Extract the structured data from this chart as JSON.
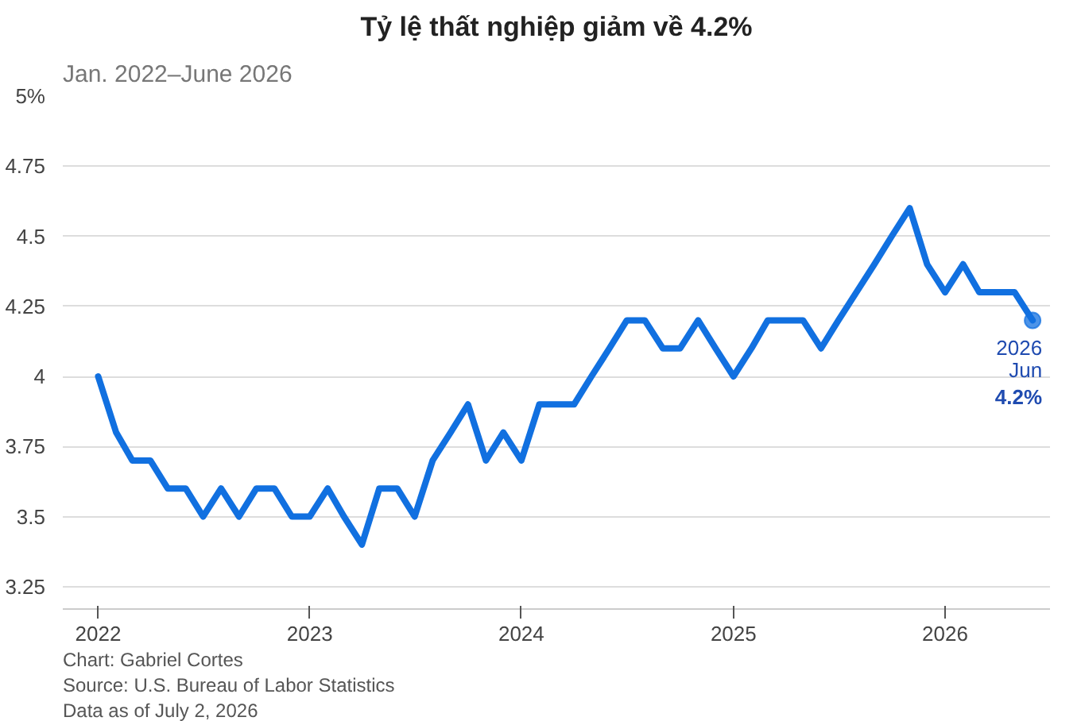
{
  "chart_data": {
    "type": "line",
    "title": "Tỷ lệ thất nghiệp giảm về 4.2%",
    "subtitle": "Jan. 2022–June 2026",
    "x": [
      "2022-01",
      "2022-02",
      "2022-03",
      "2022-04",
      "2022-05",
      "2022-06",
      "2022-07",
      "2022-08",
      "2022-09",
      "2022-10",
      "2022-11",
      "2022-12",
      "2023-01",
      "2023-02",
      "2023-03",
      "2023-04",
      "2023-05",
      "2023-06",
      "2023-07",
      "2023-08",
      "2023-09",
      "2023-10",
      "2023-11",
      "2023-12",
      "2024-01",
      "2024-02",
      "2024-03",
      "2024-04",
      "2024-05",
      "2024-06",
      "2024-07",
      "2024-08",
      "2024-09",
      "2024-10",
      "2024-11",
      "2024-12",
      "2025-01",
      "2025-02",
      "2025-03",
      "2025-04",
      "2025-05",
      "2025-06",
      "2025-07",
      "2025-08",
      "2025-09",
      "2025-10",
      "2025-11",
      "2025-12",
      "2026-01",
      "2026-02",
      "2026-03",
      "2026-04",
      "2026-05",
      "2026-06"
    ],
    "series": [
      {
        "color": "#1170e0",
        "values": [
          4.0,
          3.8,
          3.7,
          3.7,
          3.6,
          3.6,
          3.5,
          3.6,
          3.5,
          3.6,
          3.6,
          3.5,
          3.5,
          3.6,
          3.5,
          3.4,
          3.6,
          3.6,
          3.5,
          3.7,
          3.8,
          3.9,
          3.7,
          3.8,
          3.7,
          3.9,
          3.9,
          3.9,
          4.0,
          4.1,
          4.2,
          4.2,
          4.1,
          4.1,
          4.2,
          4.1,
          4.0,
          4.1,
          4.2,
          4.2,
          4.2,
          4.1,
          4.2,
          4.3,
          4.4,
          4.5,
          4.6,
          4.4,
          4.3,
          4.4,
          4.3,
          4.3,
          4.3,
          4.2
        ]
      }
    ],
    "xlim": [
      "2021-11",
      "2026-07"
    ],
    "xticks": [
      "2022",
      "2023",
      "2024",
      "2025",
      "2026"
    ],
    "ylim": [
      3.17,
      5
    ],
    "yticks": [
      3.25,
      3.5,
      3.75,
      4,
      4.25,
      4.5,
      4.75,
      {
        "value": 5,
        "label": "5%"
      }
    ],
    "grid": "y",
    "marker": "none",
    "line_style": "solid",
    "annotations": [
      {
        "text": "2026\nJun\n4.2%",
        "x": "2026-06",
        "y": 4.2
      },
      "Chart: Gabriel Cortes",
      "Source: U.S. Bureau of Labor Statistics",
      "Data as of July 2, 2026"
    ]
  }
}
